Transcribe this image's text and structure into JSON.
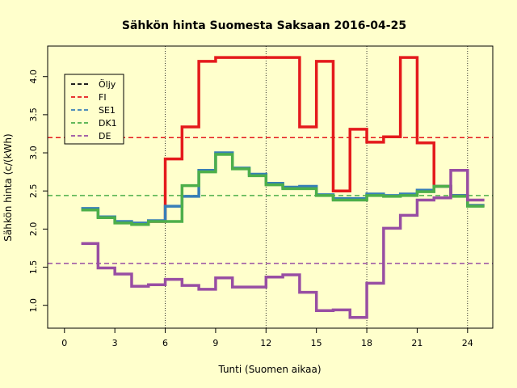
{
  "chart_data": {
    "type": "line",
    "title": "Sähkön hinta Suomesta Saksaan 2016-04-25",
    "xlabel": "Tunti (Suomen aikaa)",
    "ylabel": "Sähkön hinta (c/(kWh)",
    "xlim": [
      -1,
      25.5
    ],
    "ylim": [
      0.7,
      4.4
    ],
    "xticks": [
      0,
      3,
      6,
      9,
      12,
      15,
      18,
      21,
      24
    ],
    "yticks": [
      1.0,
      1.5,
      2.0,
      2.5,
      3.0,
      3.5,
      4.0
    ],
    "ytick_labels": [
      "1.0",
      "1.5",
      "2.0",
      "2.5",
      "3.0",
      "3.5",
      "4.0"
    ],
    "vlines": [
      6,
      12,
      18,
      24
    ],
    "legend_position": "top-left",
    "series": [
      {
        "name": "FI",
        "color": "#e41a1c",
        "x": [
          5,
          6,
          7,
          8,
          9,
          10,
          11,
          12,
          13,
          14,
          15,
          16,
          17,
          18,
          19,
          20,
          21,
          22,
          23,
          24,
          25
        ],
        "values": [
          2.1,
          2.92,
          3.34,
          4.2,
          4.25,
          4.25,
          4.25,
          4.25,
          4.25,
          3.34,
          4.2,
          2.5,
          3.31,
          3.14,
          3.21,
          4.25,
          3.13,
          2.56,
          2.44,
          2.31,
          2.31
        ]
      },
      {
        "name": "SE1",
        "color": "#377eb8",
        "x": [
          1,
          2,
          3,
          4,
          5,
          6,
          7,
          8,
          9,
          10,
          11,
          12,
          13,
          14,
          15,
          16,
          17,
          18,
          19,
          20,
          21,
          22,
          23,
          24,
          25
        ],
        "values": [
          2.27,
          2.16,
          2.1,
          2.08,
          2.11,
          2.3,
          2.43,
          2.77,
          3.0,
          2.8,
          2.72,
          2.6,
          2.55,
          2.56,
          2.45,
          2.4,
          2.4,
          2.46,
          2.44,
          2.46,
          2.51,
          2.56,
          2.44,
          2.31,
          2.31
        ]
      },
      {
        "name": "DK1",
        "color": "#4daf4a",
        "x": [
          1,
          2,
          3,
          4,
          5,
          6,
          7,
          8,
          9,
          10,
          11,
          12,
          13,
          14,
          15,
          16,
          17,
          18,
          19,
          20,
          21,
          22,
          23,
          24,
          25
        ],
        "values": [
          2.25,
          2.15,
          2.08,
          2.06,
          2.1,
          2.1,
          2.57,
          2.75,
          2.98,
          2.79,
          2.7,
          2.58,
          2.53,
          2.53,
          2.44,
          2.38,
          2.38,
          2.44,
          2.43,
          2.44,
          2.49,
          2.56,
          2.43,
          2.3,
          2.3
        ]
      },
      {
        "name": "DE",
        "color": "#984ea3",
        "x": [
          1,
          2,
          3,
          4,
          5,
          6,
          7,
          8,
          9,
          10,
          11,
          12,
          13,
          14,
          15,
          16,
          17,
          18,
          19,
          20,
          21,
          22,
          23,
          24,
          25
        ],
        "values": [
          1.81,
          1.49,
          1.41,
          1.25,
          1.27,
          1.34,
          1.26,
          1.21,
          1.36,
          1.24,
          1.24,
          1.37,
          1.4,
          1.17,
          0.93,
          0.94,
          0.84,
          1.29,
          2.01,
          2.18,
          2.38,
          2.41,
          2.77,
          2.38,
          2.38
        ]
      }
    ],
    "legend": [
      {
        "name": "Öljy",
        "color": "#000000"
      },
      {
        "name": "FI",
        "color": "#e41a1c"
      },
      {
        "name": "SE1",
        "color": "#377eb8"
      },
      {
        "name": "DK1",
        "color": "#4daf4a"
      },
      {
        "name": "DE",
        "color": "#984ea3"
      }
    ],
    "hlines": [
      {
        "value": 3.2,
        "color": "#e41a1c"
      },
      {
        "value": 2.44,
        "color": "#4daf4a"
      },
      {
        "value": 1.55,
        "color": "#984ea3"
      }
    ]
  }
}
